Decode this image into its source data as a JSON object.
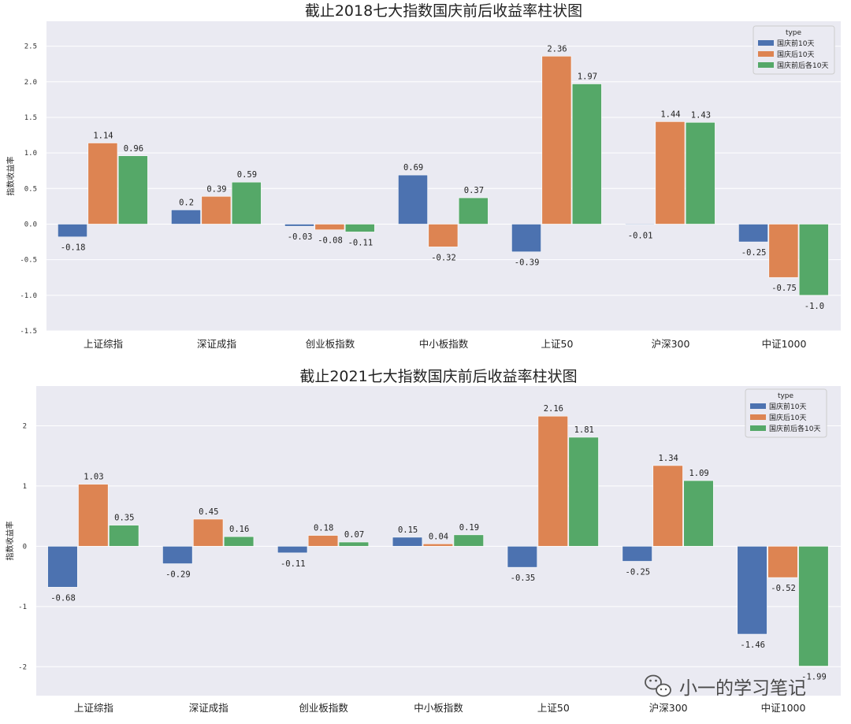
{
  "chart_data": [
    {
      "type": "bar",
      "title": "截止2018七大指数国庆前后收益率柱状图",
      "ylabel": "指数收益率",
      "xlabel": "",
      "categories": [
        "上证综指",
        "深证成指",
        "创业板指数",
        "中小板指数",
        "上证50",
        "沪深300",
        "中证1000"
      ],
      "ylim": [
        -1.5,
        2.85
      ],
      "yticks": [
        -1.5,
        -1.0,
        -0.5,
        0.0,
        0.5,
        1.0,
        1.5,
        2.0,
        2.5
      ],
      "ytick_labels": [
        "-1.5",
        "-1.0",
        "-0.5",
        "0.0",
        "0.5",
        "1.0",
        "1.5",
        "2.0",
        "2.5"
      ],
      "grid": true,
      "legend": {
        "title": "type",
        "placement": "top-right"
      },
      "series": [
        {
          "name": "国庆前10天",
          "color": "#4c72b0",
          "values": [
            -0.18,
            0.2,
            -0.03,
            0.69,
            -0.39,
            -0.01,
            -0.25
          ],
          "labels": [
            "-0.18",
            "0.2",
            "-0.03",
            "0.69",
            "-0.39",
            "-0.01",
            "-0.25"
          ]
        },
        {
          "name": "国庆后10天",
          "color": "#dd8452",
          "values": [
            1.14,
            0.39,
            -0.08,
            -0.32,
            2.36,
            1.44,
            -0.75
          ],
          "labels": [
            "1.14",
            "0.39",
            "-0.08",
            "-0.32",
            "2.36",
            "1.44",
            "-0.75"
          ]
        },
        {
          "name": "国庆前后各10天",
          "color": "#55a868",
          "values": [
            0.96,
            0.59,
            -0.11,
            0.37,
            1.97,
            1.43,
            -1.0
          ],
          "labels": [
            "0.96",
            "0.59",
            "-0.11",
            "0.37",
            "1.97",
            "1.43",
            "-1.0"
          ]
        }
      ]
    },
    {
      "type": "bar",
      "title": "截止2021七大指数国庆前后收益率柱状图",
      "ylabel": "指数收益率",
      "xlabel": "",
      "categories": [
        "上证综指",
        "深证成指",
        "创业板指数",
        "中小板指数",
        "上证50",
        "沪深300",
        "中证1000"
      ],
      "ylim": [
        -2.48,
        2.66
      ],
      "yticks": [
        -2,
        -1,
        0,
        1,
        2
      ],
      "ytick_labels": [
        "-2",
        "-1",
        "0",
        "1",
        "2"
      ],
      "grid": true,
      "legend": {
        "title": "type",
        "placement": "top-right"
      },
      "series": [
        {
          "name": "国庆前10天",
          "color": "#4c72b0",
          "values": [
            -0.68,
            -0.29,
            -0.11,
            0.15,
            -0.35,
            -0.25,
            -1.46
          ],
          "labels": [
            "-0.68",
            "-0.29",
            "-0.11",
            "0.15",
            "-0.35",
            "-0.25",
            "-1.46"
          ]
        },
        {
          "name": "国庆后10天",
          "color": "#dd8452",
          "values": [
            1.03,
            0.45,
            0.18,
            0.04,
            2.16,
            1.34,
            -0.52
          ],
          "labels": [
            "1.03",
            "0.45",
            "0.18",
            "0.04",
            "2.16",
            "1.34",
            "-0.52"
          ]
        },
        {
          "name": "国庆前后各10天",
          "color": "#55a868",
          "values": [
            0.35,
            0.16,
            0.07,
            0.19,
            1.81,
            1.09,
            -1.99
          ],
          "labels": [
            "0.35",
            "0.16",
            "0.07",
            "0.19",
            "1.81",
            "1.09",
            "-1.99"
          ]
        }
      ]
    }
  ],
  "watermark": {
    "text": "小一的学习笔记",
    "icon": "wechat-icon"
  },
  "colors": {
    "plot_background": "#eaeaf2",
    "grid": "#ffffff"
  }
}
